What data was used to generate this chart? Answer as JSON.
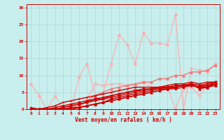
{
  "bg_color": "#c8eeed",
  "grid_color": "#b0d8d8",
  "line_color_dark": "#cc0000",
  "xlabel": "Vent moyen/en rafales ( km/h )",
  "xlabel_color": "#cc0000",
  "xlim": [
    -0.5,
    23.5
  ],
  "ylim": [
    0,
    31
  ],
  "yticks": [
    0,
    5,
    10,
    15,
    20,
    25,
    30
  ],
  "xticks": [
    0,
    1,
    2,
    3,
    4,
    5,
    6,
    7,
    8,
    9,
    10,
    11,
    12,
    13,
    14,
    15,
    16,
    17,
    18,
    19,
    20,
    21,
    22,
    23
  ],
  "series": [
    {
      "x": [
        0,
        1,
        2,
        3,
        4,
        5,
        6,
        7,
        8,
        9,
        10,
        11,
        12,
        13,
        14,
        15,
        16,
        17,
        18,
        19,
        20,
        21,
        22,
        23
      ],
      "y": [
        7.5,
        4,
        0,
        0,
        0,
        0,
        9.5,
        13.5,
        4,
        4.5,
        13.5,
        22,
        19,
        13.5,
        22.5,
        19.5,
        19.5,
        19,
        28,
        0,
        12,
        11.5,
        11,
        13.5
      ],
      "color": "#ffaaaa",
      "lw": 0.8,
      "marker": "D",
      "ms": 2.0
    },
    {
      "x": [
        0,
        1,
        2,
        3,
        4,
        5,
        6,
        7,
        8,
        9,
        10,
        11,
        12,
        13,
        14,
        15,
        16,
        17,
        18,
        19,
        20,
        21,
        22,
        23
      ],
      "y": [
        0,
        0,
        0,
        4,
        0,
        0,
        0,
        3,
        7.5,
        7,
        7.5,
        7.5,
        7,
        7,
        8,
        6.5,
        6.5,
        7,
        0,
        6,
        6.5,
        4,
        7,
        7.5
      ],
      "color": "#ffaaaa",
      "lw": 0.8,
      "marker": "x",
      "ms": 2.5
    },
    {
      "x": [
        0,
        1,
        2,
        3,
        4,
        5,
        6,
        7,
        8,
        9,
        10,
        11,
        12,
        13,
        14,
        15,
        16,
        17,
        18,
        19,
        20,
        21,
        22,
        23
      ],
      "y": [
        0,
        0,
        0,
        0,
        0,
        0.5,
        1,
        2.5,
        4,
        5,
        6,
        6.5,
        7,
        7.5,
        8,
        8,
        9,
        9,
        10,
        10,
        11,
        11,
        11.5,
        13
      ],
      "color": "#ee7777",
      "lw": 1.0,
      "marker": "^",
      "ms": 2.5
    },
    {
      "x": [
        0,
        1,
        2,
        3,
        4,
        5,
        6,
        7,
        8,
        9,
        10,
        11,
        12,
        13,
        14,
        15,
        16,
        17,
        18,
        19,
        20,
        21,
        22,
        23
      ],
      "y": [
        0,
        0,
        0.5,
        1,
        2,
        2.5,
        3,
        3.5,
        4,
        4.5,
        5,
        5.5,
        6,
        6.5,
        6.5,
        6.5,
        6.5,
        7,
        7.5,
        7.5,
        8,
        7.5,
        8,
        8
      ],
      "color": "#cc0000",
      "lw": 1.0,
      "marker": ".",
      "ms": 2.0
    },
    {
      "x": [
        0,
        1,
        2,
        3,
        4,
        5,
        6,
        7,
        8,
        9,
        10,
        11,
        12,
        13,
        14,
        15,
        16,
        17,
        18,
        19,
        20,
        21,
        22,
        23
      ],
      "y": [
        0,
        0,
        0,
        0.5,
        1,
        1.5,
        2,
        2.5,
        3,
        3.5,
        4,
        4.5,
        5,
        5.5,
        6,
        6,
        6.5,
        6.5,
        7,
        7,
        7.5,
        7,
        7,
        8
      ],
      "color": "#cc0000",
      "lw": 1.0,
      "marker": "o",
      "ms": 2.0
    },
    {
      "x": [
        0,
        1,
        2,
        3,
        4,
        5,
        6,
        7,
        8,
        9,
        10,
        11,
        12,
        13,
        14,
        15,
        16,
        17,
        18,
        19,
        20,
        21,
        22,
        23
      ],
      "y": [
        0,
        0,
        0,
        0,
        0.5,
        1,
        1.5,
        2,
        3,
        3,
        4,
        4.5,
        5,
        5.5,
        5.5,
        6,
        6.5,
        6.5,
        7,
        7,
        7.5,
        7,
        7.5,
        8
      ],
      "color": "#cc0000",
      "lw": 1.0,
      "marker": "x",
      "ms": 2.5
    },
    {
      "x": [
        0,
        1,
        2,
        3,
        4,
        5,
        6,
        7,
        8,
        9,
        10,
        11,
        12,
        13,
        14,
        15,
        16,
        17,
        18,
        19,
        20,
        21,
        22,
        23
      ],
      "y": [
        0,
        0,
        0,
        0,
        0.5,
        1,
        1.5,
        2,
        2.5,
        3,
        3.5,
        4,
        4.5,
        5,
        5.5,
        6,
        6,
        6.5,
        6.5,
        7,
        7,
        6.5,
        7,
        7.5
      ],
      "color": "#cc0000",
      "lw": 1.0,
      "marker": "+",
      "ms": 2.5
    },
    {
      "x": [
        0,
        1,
        2,
        3,
        4,
        5,
        6,
        7,
        8,
        9,
        10,
        11,
        12,
        13,
        14,
        15,
        16,
        17,
        18,
        19,
        20,
        21,
        22,
        23
      ],
      "y": [
        0,
        0,
        0,
        0,
        0,
        0.5,
        0.5,
        1,
        1.5,
        2,
        2.5,
        3,
        3.5,
        4,
        4.5,
        5,
        5.5,
        6,
        6,
        6.5,
        7,
        6.5,
        6.5,
        7.5
      ],
      "color": "#cc0000",
      "lw": 1.0,
      "marker": "s",
      "ms": 2.0
    },
    {
      "x": [
        0,
        1,
        2,
        3,
        4,
        5,
        6,
        7,
        8,
        9,
        10,
        11,
        12,
        13,
        14,
        15,
        16,
        17,
        18,
        19,
        20,
        21,
        22,
        23
      ],
      "y": [
        0,
        0,
        0,
        0,
        0,
        0,
        0.5,
        1,
        1.5,
        2,
        3,
        3.5,
        4,
        4.5,
        5,
        5.5,
        6,
        6,
        6.5,
        7,
        7,
        6.5,
        6.5,
        7.5
      ],
      "color": "#cc0000",
      "lw": 1.0,
      "marker": "D",
      "ms": 2.0
    },
    {
      "x": [
        0,
        1,
        2,
        3,
        4,
        5,
        6,
        7,
        8,
        9,
        10,
        11,
        12,
        13,
        14,
        15,
        16,
        17,
        18,
        19,
        20,
        21,
        22,
        23
      ],
      "y": [
        0.5,
        0,
        0,
        0,
        0,
        0,
        0.5,
        1,
        1.5,
        2,
        2.5,
        3,
        3.5,
        4,
        4.5,
        5,
        5.5,
        6,
        6.5,
        7,
        7.5,
        6,
        6.5,
        7
      ],
      "color": "#cc0000",
      "lw": 1.0,
      "marker": "^",
      "ms": 2.5
    }
  ]
}
